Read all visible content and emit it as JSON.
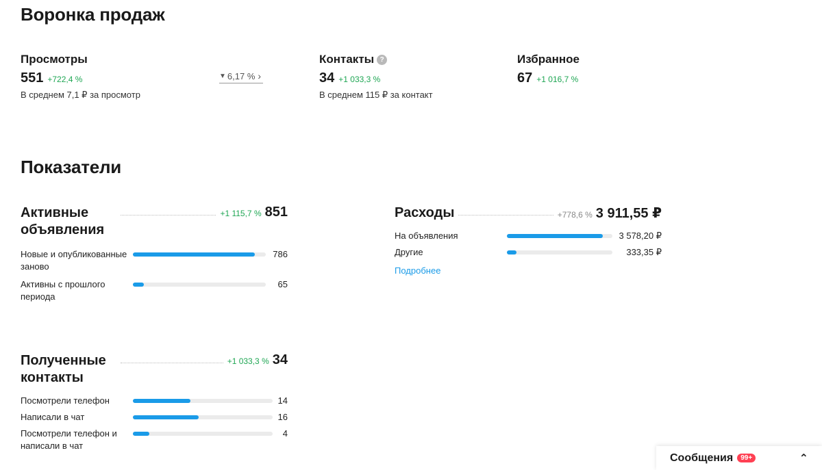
{
  "funnel": {
    "title": "Воронка продаж",
    "views": {
      "label": "Просмотры",
      "value": "551",
      "delta": "+722,4 %",
      "sub": "В среднем 7,1 ₽ за просмотр"
    },
    "conversion": {
      "filter_icon": "▼",
      "value": "6,17 %",
      "chevron": "›"
    },
    "contacts": {
      "label": "Контакты",
      "help": "?",
      "value": "34",
      "delta": "+1 033,3 %",
      "sub": "В среднем 115 ₽ за контакт"
    },
    "favorites": {
      "label": "Избранное",
      "value": "67",
      "delta": "+1 016,7 %"
    }
  },
  "metrics": {
    "title": "Показатели",
    "active_ads": {
      "title": "Активные объявления",
      "delta": "+1 115,7 %",
      "total": "851",
      "rows": [
        {
          "label": "Новые и опубликованные заново",
          "value": "786",
          "fill": 0.92
        },
        {
          "label": "Активны с прошлого периода",
          "value": "65",
          "fill": 0.08
        }
      ]
    },
    "expenses": {
      "title": "Расходы",
      "delta": "+778,6 %",
      "total": "3 911,55 ₽",
      "rows": [
        {
          "label": "На объявления",
          "value": "3 578,20 ₽",
          "fill": 0.91
        },
        {
          "label": "Другие",
          "value": "333,35 ₽",
          "fill": 0.09
        }
      ],
      "more": "Подробнее"
    },
    "received_contacts": {
      "title": "Полученные контакты",
      "delta": "+1 033,3 %",
      "total": "34",
      "rows": [
        {
          "label": "Посмотрели телефон",
          "value": "14",
          "fill": 0.41
        },
        {
          "label": "Написали в чат",
          "value": "16",
          "fill": 0.47
        },
        {
          "label": "Посмотрели телефон и написали в чат",
          "value": "4",
          "fill": 0.12
        }
      ]
    }
  },
  "messages": {
    "label": "Сообщения",
    "badge": "99+",
    "chevron": "⌃"
  },
  "colors": {
    "accent": "#1a9be8",
    "positive": "#1ea653",
    "badge": "#ff4053"
  }
}
